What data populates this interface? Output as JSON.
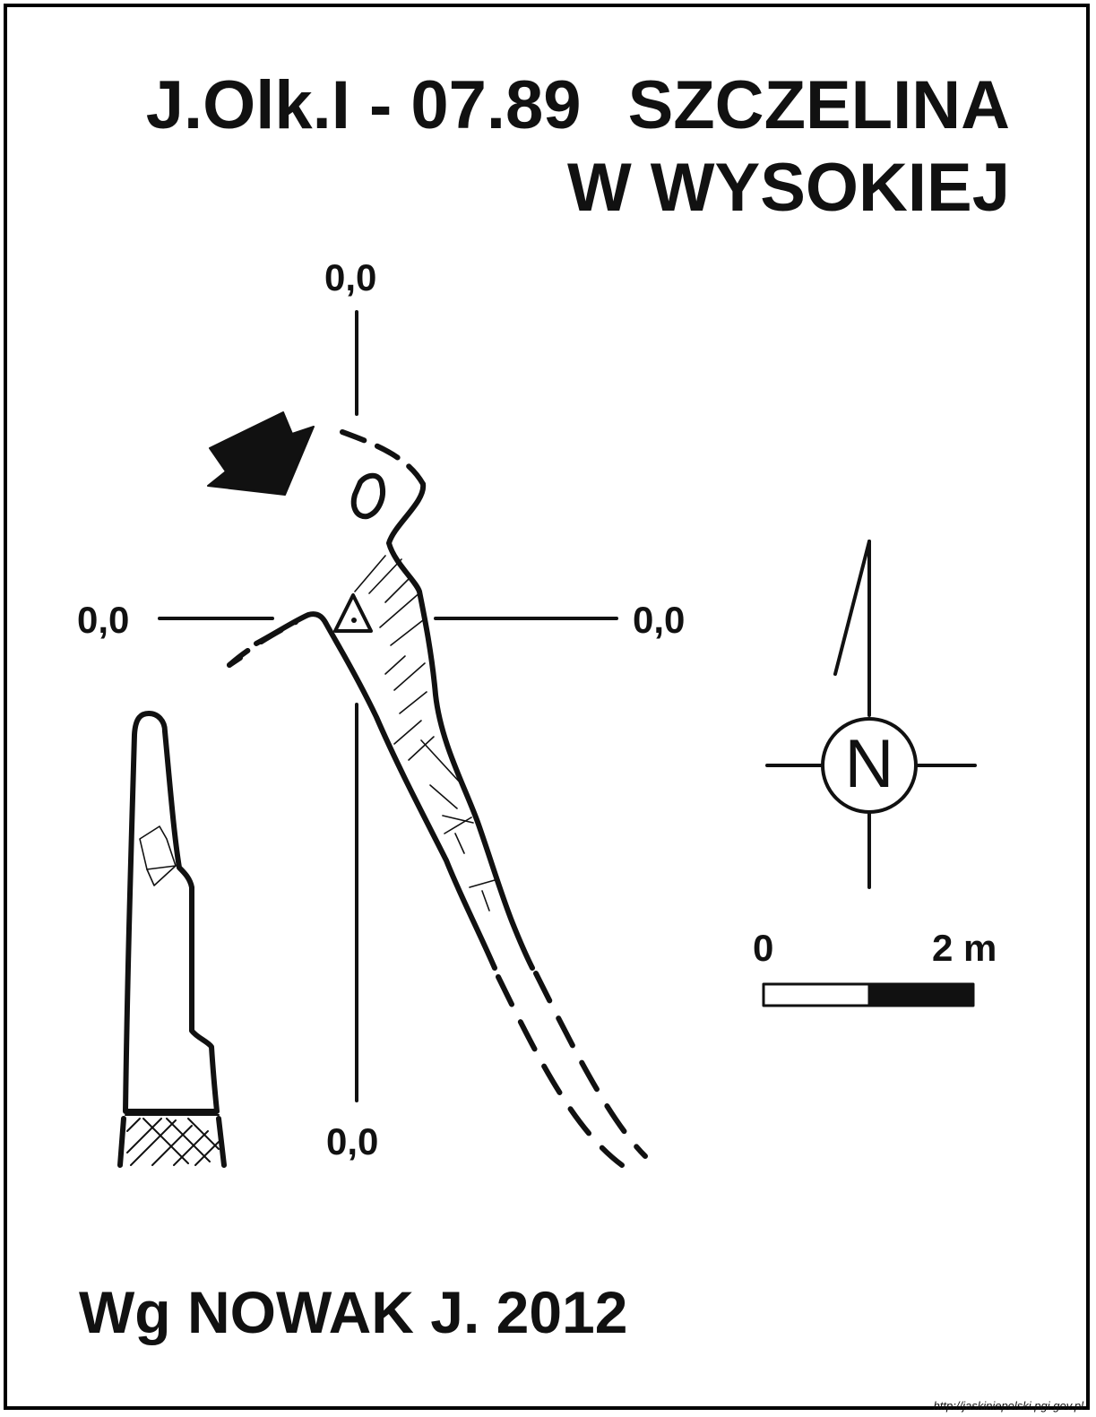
{
  "title": {
    "code": "J.Olk.I - 07.89",
    "name_line1": "SZCZELINA",
    "name_line2": "W WYSOKIEJ"
  },
  "datum": {
    "top": "0,0",
    "left": "0,0",
    "right": "0,0",
    "bottom": "0,0"
  },
  "compass": {
    "letter": "N",
    "icon": "north-arrow-icon"
  },
  "scale": {
    "start_label": "0",
    "end_label": "2 m",
    "length_m": 2,
    "segments": 2
  },
  "author": "Wg NOWAK J. 2012",
  "source": "http://jaskiniepolski.pgi.gov.pl",
  "colors": {
    "ink": "#111111",
    "paper": "#ffffff"
  },
  "symbols": {
    "entrance": "entrance-arrow-icon",
    "datum_point": "triangle-benchmark-icon"
  }
}
